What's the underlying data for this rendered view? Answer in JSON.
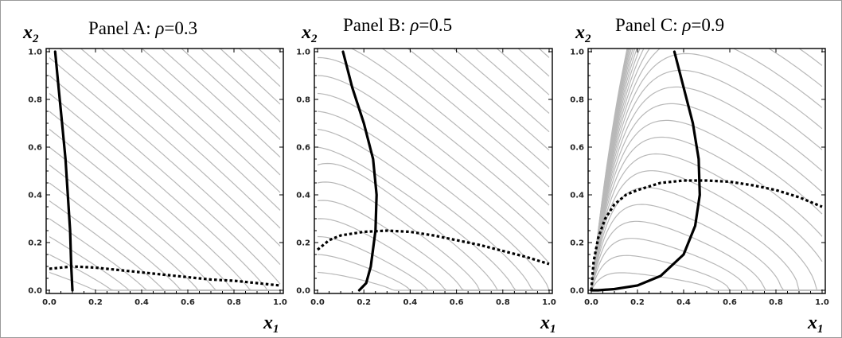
{
  "chart_data": [
    {
      "type": "line",
      "title": "Panel A: ρ=0.3",
      "title_prefix": "Panel A: ",
      "rho_symbol": "ρ",
      "rho_value": "=0.3",
      "xlabel": "x1",
      "ylabel": "x2",
      "xlim": [
        0,
        1
      ],
      "ylim": [
        0,
        1
      ],
      "xticks": [
        "0.0",
        "0.2",
        "0.4",
        "0.6",
        "0.8",
        "1.0"
      ],
      "yticks": [
        "0.0",
        "0.2",
        "0.4",
        "0.6",
        "0.8",
        "1.0"
      ],
      "grid": false,
      "rho": 0.3,
      "series": [
        {
          "style": "solid",
          "x": [
            0.025,
            0.04,
            0.055,
            0.07,
            0.08,
            0.09,
            0.095,
            0.1
          ],
          "y": [
            1.0,
            0.85,
            0.7,
            0.55,
            0.4,
            0.25,
            0.1,
            0.0
          ]
        },
        {
          "style": "dotted",
          "x": [
            0.0,
            0.1,
            0.2,
            0.3,
            0.4,
            0.5,
            0.6,
            0.7,
            0.8,
            0.9,
            1.0
          ],
          "y": [
            0.09,
            0.1,
            0.095,
            0.085,
            0.075,
            0.065,
            0.055,
            0.045,
            0.04,
            0.03,
            0.02
          ]
        }
      ]
    },
    {
      "type": "line",
      "title": "Panel B: ρ=0.5",
      "title_prefix": "Panel B: ",
      "rho_symbol": "ρ",
      "rho_value": "=0.5",
      "xlabel": "x1",
      "ylabel": "x2",
      "xlim": [
        0,
        1
      ],
      "ylim": [
        0,
        1
      ],
      "xticks": [
        "0.0",
        "0.2",
        "0.4",
        "0.6",
        "0.8",
        "1.0"
      ],
      "yticks": [
        "0.0",
        "0.2",
        "0.4",
        "0.6",
        "0.8",
        "1.0"
      ],
      "grid": false,
      "rho": 0.5,
      "series": [
        {
          "style": "solid",
          "x": [
            0.11,
            0.15,
            0.2,
            0.24,
            0.255,
            0.25,
            0.23,
            0.21,
            0.18
          ],
          "y": [
            1.0,
            0.85,
            0.7,
            0.55,
            0.4,
            0.25,
            0.1,
            0.03,
            0.0
          ]
        },
        {
          "style": "dotted",
          "x": [
            0.0,
            0.05,
            0.1,
            0.2,
            0.3,
            0.4,
            0.5,
            0.6,
            0.7,
            0.8,
            0.9,
            1.0
          ],
          "y": [
            0.17,
            0.21,
            0.23,
            0.245,
            0.25,
            0.245,
            0.23,
            0.21,
            0.19,
            0.165,
            0.14,
            0.11
          ]
        }
      ]
    },
    {
      "type": "line",
      "title": "Panel  C: ρ=0.9",
      "title_prefix": "Panel  C: ",
      "rho_symbol": "ρ",
      "rho_value": "=0.9",
      "xlabel": "x1",
      "ylabel": "x2",
      "xlim": [
        0,
        1
      ],
      "ylim": [
        0,
        1
      ],
      "xticks": [
        "0.0",
        "0.2",
        "0.4",
        "0.6",
        "0.8",
        "1.0"
      ],
      "yticks": [
        "0.0",
        "0.2",
        "0.4",
        "0.6",
        "0.8",
        "1.0"
      ],
      "grid": false,
      "rho": 0.9,
      "series": [
        {
          "style": "solid",
          "x": [
            0.36,
            0.4,
            0.44,
            0.465,
            0.47,
            0.45,
            0.4,
            0.3,
            0.2,
            0.1,
            0.03,
            0.0
          ],
          "y": [
            1.0,
            0.85,
            0.7,
            0.55,
            0.4,
            0.27,
            0.15,
            0.06,
            0.02,
            0.005,
            0.0,
            0.0
          ]
        },
        {
          "style": "dotted",
          "x": [
            0.0,
            0.01,
            0.03,
            0.06,
            0.1,
            0.15,
            0.2,
            0.3,
            0.4,
            0.5,
            0.6,
            0.7,
            0.8,
            0.9,
            1.0
          ],
          "y": [
            0.0,
            0.12,
            0.22,
            0.3,
            0.36,
            0.4,
            0.42,
            0.45,
            0.46,
            0.46,
            0.455,
            0.44,
            0.42,
            0.39,
            0.35
          ]
        }
      ]
    }
  ]
}
